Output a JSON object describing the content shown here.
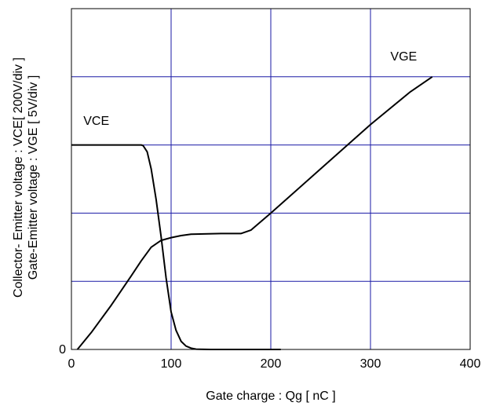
{
  "chart_data": {
    "type": "line",
    "xlabel": "Gate charge : Qg [ nC ]",
    "ylabel_lines": [
      "Collector- Emitter voltage : VCE[ 200V/div ]",
      "Gate-Emitter voltage : VGE [ 5V/div ]"
    ],
    "xlim": [
      0,
      400
    ],
    "ylim_div": [
      0,
      5
    ],
    "x_ticks": [
      0,
      100,
      200,
      300,
      400
    ],
    "x_tick_labels": [
      "0",
      "100",
      "200",
      "300",
      "400"
    ],
    "y_tick_labels": [
      {
        "div": 0,
        "label": "0"
      }
    ],
    "grid": true,
    "grid_color": "#1a1aa6",
    "line_color": "#000000",
    "series": [
      {
        "name": "VCE",
        "points": [
          [
            0,
            3
          ],
          [
            70,
            3
          ],
          [
            72,
            2.99
          ],
          [
            76,
            2.9
          ],
          [
            80,
            2.65
          ],
          [
            85,
            2.2
          ],
          [
            90,
            1.65
          ],
          [
            95,
            1.05
          ],
          [
            100,
            0.55
          ],
          [
            105,
            0.28
          ],
          [
            110,
            0.12
          ],
          [
            115,
            0.05
          ],
          [
            120,
            0.02
          ],
          [
            125,
            0.005
          ],
          [
            140,
            0
          ],
          [
            210,
            0
          ]
        ]
      },
      {
        "name": "VGE",
        "points": [
          [
            6,
            0
          ],
          [
            20,
            0.25
          ],
          [
            40,
            0.65
          ],
          [
            60,
            1.08
          ],
          [
            70,
            1.3
          ],
          [
            80,
            1.5
          ],
          [
            90,
            1.6
          ],
          [
            100,
            1.64
          ],
          [
            110,
            1.67
          ],
          [
            120,
            1.69
          ],
          [
            150,
            1.7
          ],
          [
            170,
            1.7
          ],
          [
            180,
            1.75
          ],
          [
            200,
            2.0
          ],
          [
            250,
            2.65
          ],
          [
            300,
            3.3
          ],
          [
            340,
            3.78
          ],
          [
            362,
            4.0
          ]
        ]
      }
    ],
    "series_labels": [
      {
        "text": "VCE",
        "at": [
          12,
          3.35
        ]
      },
      {
        "text": "VGE",
        "at": [
          320,
          4.3
        ]
      }
    ]
  }
}
